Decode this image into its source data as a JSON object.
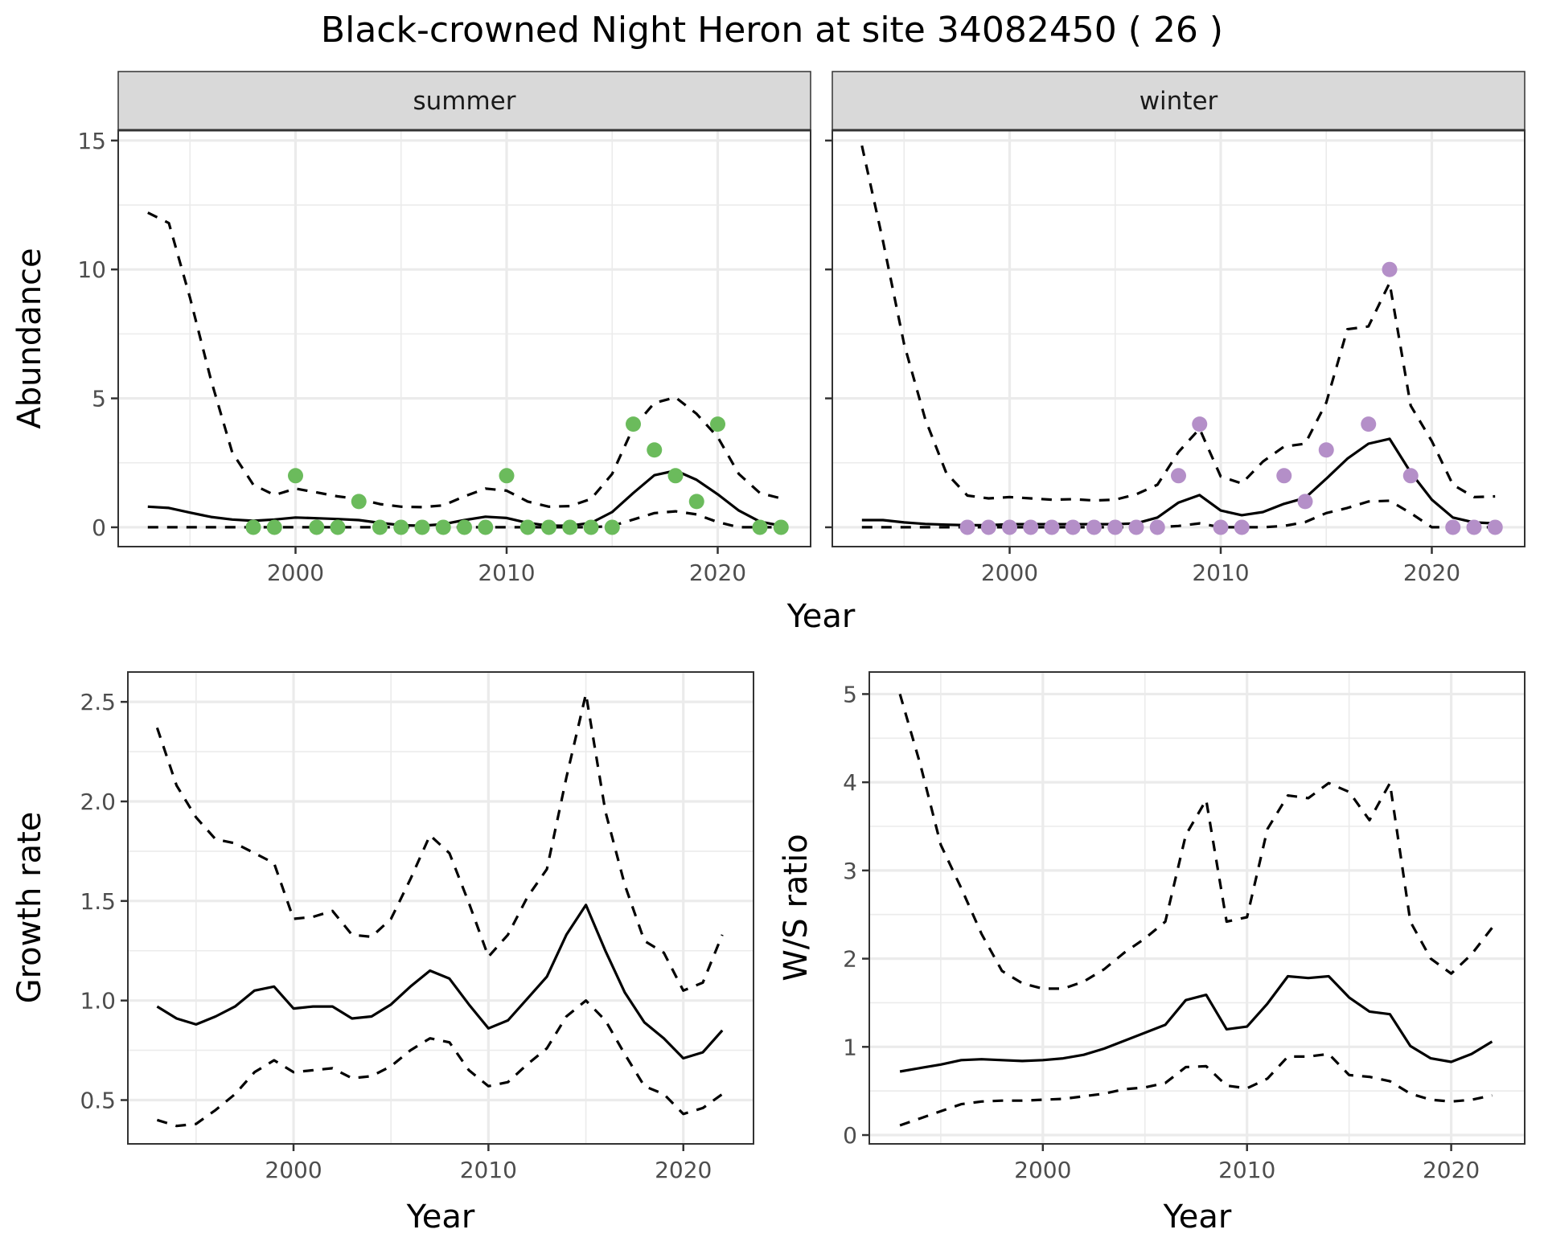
{
  "chart_data": {
    "title": "Black-crowned Night Heron at site 34082450 ( 26 )",
    "panels": [
      {
        "id": "abundance-summer",
        "type": "line",
        "strip_label": "summer",
        "xlabel": "Year",
        "ylabel": "Abundance",
        "xlim": [
          1991.6,
          2024.4
        ],
        "ylim": [
          -0.75,
          15.4
        ],
        "x_ticks": [
          2000,
          2010,
          2020
        ],
        "y_ticks": [
          0,
          5,
          10,
          15
        ],
        "grid": true,
        "x": [
          1993,
          1994,
          1995,
          1996,
          1997,
          1998,
          1999,
          2000,
          2001,
          2002,
          2003,
          2004,
          2005,
          2006,
          2007,
          2008,
          2009,
          2010,
          2011,
          2012,
          2013,
          2014,
          2015,
          2016,
          2017,
          2018,
          2019,
          2020,
          2021,
          2022,
          2023
        ],
        "series": [
          {
            "name": "estimate",
            "style": "solid",
            "values": [
              0.8,
              0.75,
              0.57,
              0.4,
              0.3,
              0.25,
              0.3,
              0.38,
              0.35,
              0.32,
              0.28,
              0.17,
              0.08,
              0.06,
              0.12,
              0.28,
              0.41,
              0.36,
              0.17,
              0.06,
              0.06,
              0.17,
              0.59,
              1.33,
              2.02,
              2.2,
              1.84,
              1.28,
              0.65,
              0.22,
              0.06
            ]
          },
          {
            "name": "upper",
            "style": "dashed",
            "values": [
              12.2,
              11.8,
              8.9,
              5.7,
              2.9,
              1.65,
              1.25,
              1.5,
              1.35,
              1.2,
              1.1,
              0.9,
              0.8,
              0.78,
              0.85,
              1.2,
              1.5,
              1.42,
              1.0,
              0.8,
              0.82,
              1.1,
              2.07,
              3.87,
              4.82,
              5.04,
              4.4,
              3.5,
              2.07,
              1.33,
              1.12
            ]
          },
          {
            "name": "lower",
            "style": "dashed",
            "values": [
              0,
              0,
              0,
              0,
              0,
              0,
              0,
              0,
              0,
              0,
              0,
              0,
              0,
              0,
              0,
              0,
              0,
              0,
              0,
              0,
              0,
              0,
              0.05,
              0.3,
              0.55,
              0.62,
              0.5,
              0.2,
              0,
              0,
              0
            ]
          }
        ],
        "points": {
          "color": "#6bbb5c",
          "x": [
            1998,
            1999,
            2000,
            2001,
            2002,
            2003,
            2004,
            2005,
            2006,
            2007,
            2008,
            2009,
            2010,
            2011,
            2012,
            2013,
            2014,
            2015,
            2016,
            2017,
            2018,
            2019,
            2020,
            2022,
            2023
          ],
          "y": [
            0,
            0,
            2,
            0,
            0,
            1,
            0,
            0,
            0,
            0,
            0,
            0,
            2,
            0,
            0,
            0,
            0,
            0,
            4,
            3,
            2,
            1,
            4,
            0,
            0
          ]
        }
      },
      {
        "id": "abundance-winter",
        "type": "line",
        "strip_label": "winter",
        "xlabel": "Year",
        "ylabel": "Abundance",
        "xlim": [
          1991.6,
          2024.4
        ],
        "ylim": [
          -0.75,
          15.4
        ],
        "x_ticks": [
          2000,
          2010,
          2020
        ],
        "y_ticks": [
          0,
          5,
          10,
          15
        ],
        "grid": true,
        "x": [
          1993,
          1994,
          1995,
          1996,
          1997,
          1998,
          1999,
          2000,
          2001,
          2002,
          2003,
          2004,
          2005,
          2006,
          2007,
          2008,
          2009,
          2010,
          2011,
          2012,
          2013,
          2014,
          2015,
          2016,
          2017,
          2018,
          2019,
          2020,
          2021,
          2022,
          2023
        ],
        "series": [
          {
            "name": "estimate",
            "style": "solid",
            "values": [
              0.28,
              0.28,
              0.19,
              0.13,
              0.1,
              0.08,
              0.08,
              0.12,
              0.12,
              0.12,
              0.12,
              0.12,
              0.12,
              0.15,
              0.38,
              0.96,
              1.25,
              0.65,
              0.47,
              0.59,
              0.91,
              1.14,
              1.88,
              2.66,
              3.24,
              3.43,
              2.13,
              1.07,
              0.38,
              0.19,
              0.15
            ]
          },
          {
            "name": "upper",
            "style": "dashed",
            "values": [
              14.8,
              11.1,
              7.1,
              4.2,
              2.1,
              1.23,
              1.12,
              1.17,
              1.12,
              1.07,
              1.09,
              1.04,
              1.07,
              1.28,
              1.65,
              2.92,
              3.82,
              1.97,
              1.7,
              2.55,
              3.13,
              3.24,
              4.83,
              7.68,
              7.79,
              9.48,
              4.72,
              3.34,
              1.65,
              1.17,
              1.2
            ]
          },
          {
            "name": "lower",
            "style": "dashed",
            "values": [
              0,
              0,
              0,
              0,
              0,
              0,
              0,
              0,
              0,
              0,
              0,
              0,
              0,
              0,
              0,
              0.05,
              0.15,
              0,
              0,
              0,
              0.05,
              0.2,
              0.55,
              0.75,
              1.0,
              1.03,
              0.55,
              0,
              0,
              0,
              0
            ]
          }
        ],
        "points": {
          "color": "#b48fc8",
          "x": [
            1998,
            1999,
            2000,
            2001,
            2002,
            2003,
            2004,
            2005,
            2006,
            2007,
            2008,
            2009,
            2010,
            2011,
            2013,
            2014,
            2015,
            2017,
            2018,
            2019,
            2021,
            2022,
            2023
          ],
          "y": [
            0,
            0,
            0,
            0,
            0,
            0,
            0,
            0,
            0,
            0,
            2,
            4,
            0,
            0,
            2,
            1,
            3,
            4,
            10,
            2,
            0,
            0,
            0
          ]
        }
      },
      {
        "id": "growth-rate",
        "type": "line",
        "xlabel": "Year",
        "ylabel": "Growth rate",
        "xlim": [
          1991.5,
          2023.6
        ],
        "ylim": [
          0.28,
          2.65
        ],
        "x_ticks": [
          2000,
          2010,
          2020
        ],
        "y_ticks": [
          0.5,
          1.0,
          1.5,
          2.0,
          2.5
        ],
        "y_tick_labels": [
          "0.5",
          "1.0",
          "1.5",
          "2.0",
          "2.5"
        ],
        "grid": true,
        "x": [
          1993,
          1994,
          1995,
          1996,
          1997,
          1998,
          1999,
          2000,
          2001,
          2002,
          2003,
          2004,
          2005,
          2006,
          2007,
          2008,
          2009,
          2010,
          2011,
          2012,
          2013,
          2014,
          2015,
          2016,
          2017,
          2018,
          2019,
          2020,
          2021,
          2022
        ],
        "series": [
          {
            "name": "estimate",
            "style": "solid",
            "values": [
              0.97,
              0.91,
              0.88,
              0.92,
              0.97,
              1.05,
              1.07,
              0.96,
              0.97,
              0.97,
              0.91,
              0.92,
              0.98,
              1.07,
              1.15,
              1.11,
              0.98,
              0.86,
              0.9,
              1.01,
              1.12,
              1.33,
              1.48,
              1.25,
              1.04,
              0.89,
              0.81,
              0.71,
              0.74,
              0.85
            ]
          },
          {
            "name": "upper",
            "style": "dashed",
            "values": [
              2.37,
              2.08,
              1.92,
              1.81,
              1.79,
              1.74,
              1.69,
              1.41,
              1.42,
              1.45,
              1.33,
              1.32,
              1.41,
              1.61,
              1.83,
              1.74,
              1.49,
              1.22,
              1.33,
              1.52,
              1.66,
              2.12,
              2.54,
              1.95,
              1.58,
              1.3,
              1.24,
              1.05,
              1.09,
              1.33
            ]
          },
          {
            "name": "lower",
            "style": "dashed",
            "values": [
              0.4,
              0.37,
              0.38,
              0.45,
              0.53,
              0.64,
              0.7,
              0.64,
              0.65,
              0.66,
              0.61,
              0.62,
              0.67,
              0.75,
              0.81,
              0.79,
              0.65,
              0.57,
              0.59,
              0.68,
              0.76,
              0.92,
              1.0,
              0.9,
              0.73,
              0.57,
              0.53,
              0.43,
              0.46,
              0.53
            ]
          }
        ]
      },
      {
        "id": "ws-ratio",
        "type": "line",
        "xlabel": "Year",
        "ylabel": "W/S ratio",
        "xlim": [
          1991.5,
          2023.6
        ],
        "ylim": [
          -0.1,
          5.25
        ],
        "x_ticks": [
          2000,
          2010,
          2020
        ],
        "y_ticks": [
          0,
          1,
          2,
          3,
          4,
          5
        ],
        "y_tick_labels": [
          "0",
          "1",
          "2",
          "3",
          "4",
          "5"
        ],
        "grid": true,
        "x": [
          1993,
          1994,
          1995,
          1996,
          1997,
          1998,
          1999,
          2000,
          2001,
          2002,
          2003,
          2004,
          2005,
          2006,
          2007,
          2008,
          2009,
          2010,
          2011,
          2012,
          2013,
          2014,
          2015,
          2016,
          2017,
          2018,
          2019,
          2020,
          2021,
          2022
        ],
        "series": [
          {
            "name": "estimate",
            "style": "solid",
            "values": [
              0.72,
              0.76,
              0.8,
              0.85,
              0.86,
              0.85,
              0.84,
              0.85,
              0.87,
              0.91,
              0.98,
              1.07,
              1.16,
              1.25,
              1.53,
              1.59,
              1.2,
              1.23,
              1.49,
              1.8,
              1.78,
              1.8,
              1.56,
              1.4,
              1.37,
              1.01,
              0.87,
              0.83,
              0.92,
              1.06
            ]
          },
          {
            "name": "upper",
            "style": "dashed",
            "values": [
              5.0,
              4.2,
              3.29,
              2.8,
              2.28,
              1.86,
              1.72,
              1.66,
              1.66,
              1.74,
              1.88,
              2.07,
              2.23,
              2.42,
              3.4,
              3.8,
              2.42,
              2.47,
              3.47,
              3.85,
              3.82,
              3.99,
              3.89,
              3.57,
              3.99,
              2.42,
              2.0,
              1.83,
              2.05,
              2.35
            ]
          },
          {
            "name": "lower",
            "style": "dashed",
            "values": [
              0.11,
              0.19,
              0.27,
              0.35,
              0.38,
              0.39,
              0.39,
              0.4,
              0.41,
              0.44,
              0.47,
              0.52,
              0.54,
              0.59,
              0.77,
              0.78,
              0.56,
              0.53,
              0.64,
              0.89,
              0.89,
              0.92,
              0.68,
              0.66,
              0.61,
              0.47,
              0.4,
              0.38,
              0.4,
              0.45
            ]
          }
        ]
      }
    ]
  },
  "labels": {
    "title": "Black-crowned Night Heron at site 34082450 ( 26 )",
    "strip_summer": "summer",
    "strip_winter": "winter",
    "abundance_ylabel": "Abundance",
    "top_xlabel": "Year",
    "growth_ylabel": "Growth rate",
    "growth_xlabel": "Year",
    "ws_ylabel": "W/S ratio",
    "ws_xlabel": "Year"
  }
}
